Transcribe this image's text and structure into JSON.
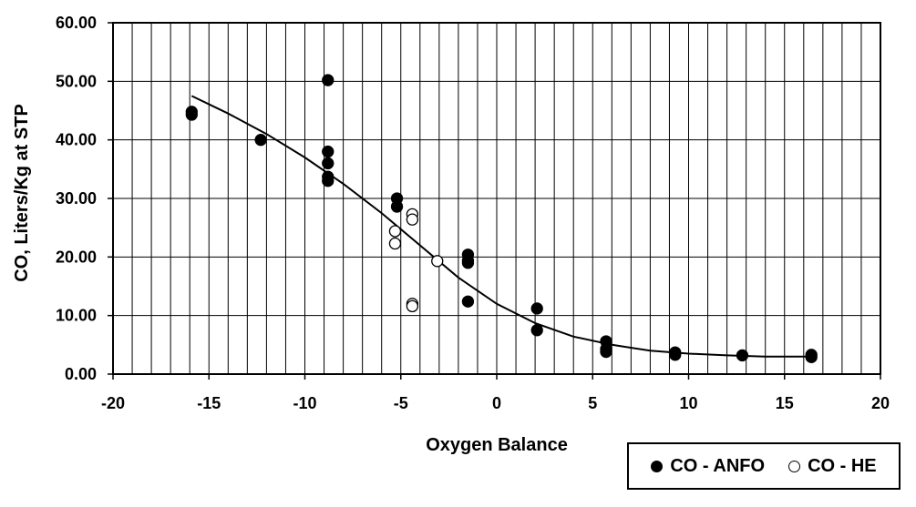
{
  "chart_data": {
    "type": "scatter",
    "xlabel": "Oxygen Balance",
    "ylabel": "CO, Liters/Kg at STP",
    "xlim": [
      -20,
      20
    ],
    "ylim": [
      0,
      60
    ],
    "x_ticks": [
      -20,
      -15,
      -10,
      -5,
      0,
      5,
      10,
      15,
      20
    ],
    "y_ticks": [
      0,
      10,
      20,
      30,
      40,
      50,
      60
    ],
    "y_tick_labels": [
      "0.00",
      "10.00",
      "20.00",
      "30.00",
      "40.00",
      "50.00",
      "60.00"
    ],
    "grid": true,
    "legend_position": "bottom-right",
    "series": [
      {
        "name": "CO - ANFO",
        "marker": "filled-circle",
        "x": [
          -15.9,
          -15.9,
          -12.3,
          -8.8,
          -8.8,
          -8.8,
          -8.8,
          -8.8,
          -5.2,
          -5.2,
          -1.5,
          -1.5,
          -1.5,
          -1.5,
          2.1,
          2.1,
          5.7,
          5.7,
          5.7,
          9.3,
          9.3,
          12.8,
          16.4,
          16.4
        ],
        "y": [
          44.8,
          44.3,
          40.0,
          50.2,
          38.0,
          36.0,
          33.7,
          33.0,
          30.0,
          28.6,
          20.4,
          19.4,
          19.0,
          12.4,
          11.2,
          7.5,
          5.6,
          4.3,
          3.8,
          3.7,
          3.3,
          3.2,
          3.3,
          2.9
        ]
      },
      {
        "name": "CO - HE",
        "marker": "open-circle",
        "x": [
          -5.3,
          -5.3,
          -4.4,
          -4.4,
          -4.4,
          -4.4,
          -3.1
        ],
        "y": [
          24.4,
          22.3,
          27.3,
          26.4,
          12.0,
          11.6,
          19.3
        ]
      },
      {
        "name": "fit",
        "style": "line",
        "x": [
          -15.9,
          -14,
          -12,
          -10,
          -8,
          -6,
          -4,
          -2,
          0,
          2,
          4,
          6,
          8,
          10,
          12,
          14,
          16.4
        ],
        "y": [
          47.5,
          44.5,
          41.0,
          37.0,
          32.5,
          27.5,
          22.0,
          16.5,
          12.0,
          8.7,
          6.4,
          5.0,
          4.0,
          3.5,
          3.2,
          3.0,
          3.0
        ]
      }
    ]
  },
  "legend": {
    "anfo_label": "CO - ANFO",
    "he_label": "CO - HE"
  }
}
